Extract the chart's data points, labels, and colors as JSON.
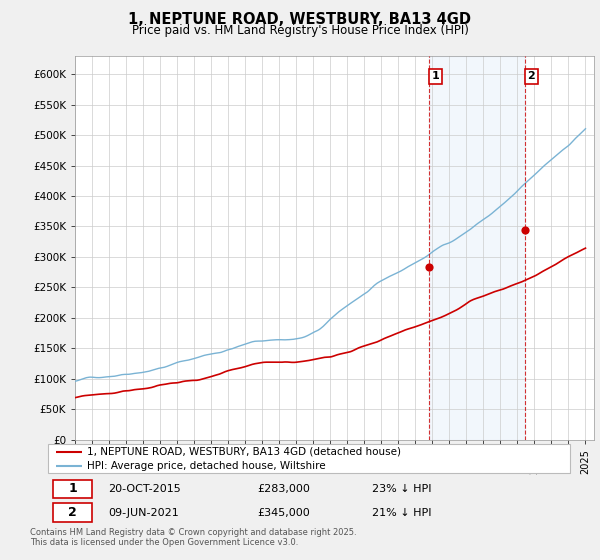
{
  "title": "1, NEPTUNE ROAD, WESTBURY, BA13 4GD",
  "subtitle": "Price paid vs. HM Land Registry's House Price Index (HPI)",
  "footer": "Contains HM Land Registry data © Crown copyright and database right 2025.\nThis data is licensed under the Open Government Licence v3.0.",
  "legend_line1": "1, NEPTUNE ROAD, WESTBURY, BA13 4GD (detached house)",
  "legend_line2": "HPI: Average price, detached house, Wiltshire",
  "sale1_label": "1",
  "sale1_date": "20-OCT-2015",
  "sale1_price": "£283,000",
  "sale1_hpi": "23% ↓ HPI",
  "sale2_label": "2",
  "sale2_date": "09-JUN-2021",
  "sale2_price": "£345,000",
  "sale2_hpi": "21% ↓ HPI",
  "hpi_color": "#7ab3d4",
  "price_color": "#cc0000",
  "sale1_year": 2015.8,
  "sale2_year": 2021.44,
  "sale1_price_val": 283000,
  "sale2_price_val": 345000,
  "ylim": [
    0,
    630000
  ],
  "xlim": [
    1995,
    2025.5
  ],
  "yticks": [
    0,
    50000,
    100000,
    150000,
    200000,
    250000,
    300000,
    350000,
    400000,
    450000,
    500000,
    550000,
    600000
  ],
  "ytick_labels": [
    "£0",
    "£50K",
    "£100K",
    "£150K",
    "£200K",
    "£250K",
    "£300K",
    "£350K",
    "£400K",
    "£450K",
    "£500K",
    "£550K",
    "£600K"
  ],
  "background_color": "#f0f0f0",
  "plot_bg": "#ffffff",
  "grid_color": "#cccccc",
  "span_color": "#ddeeff"
}
